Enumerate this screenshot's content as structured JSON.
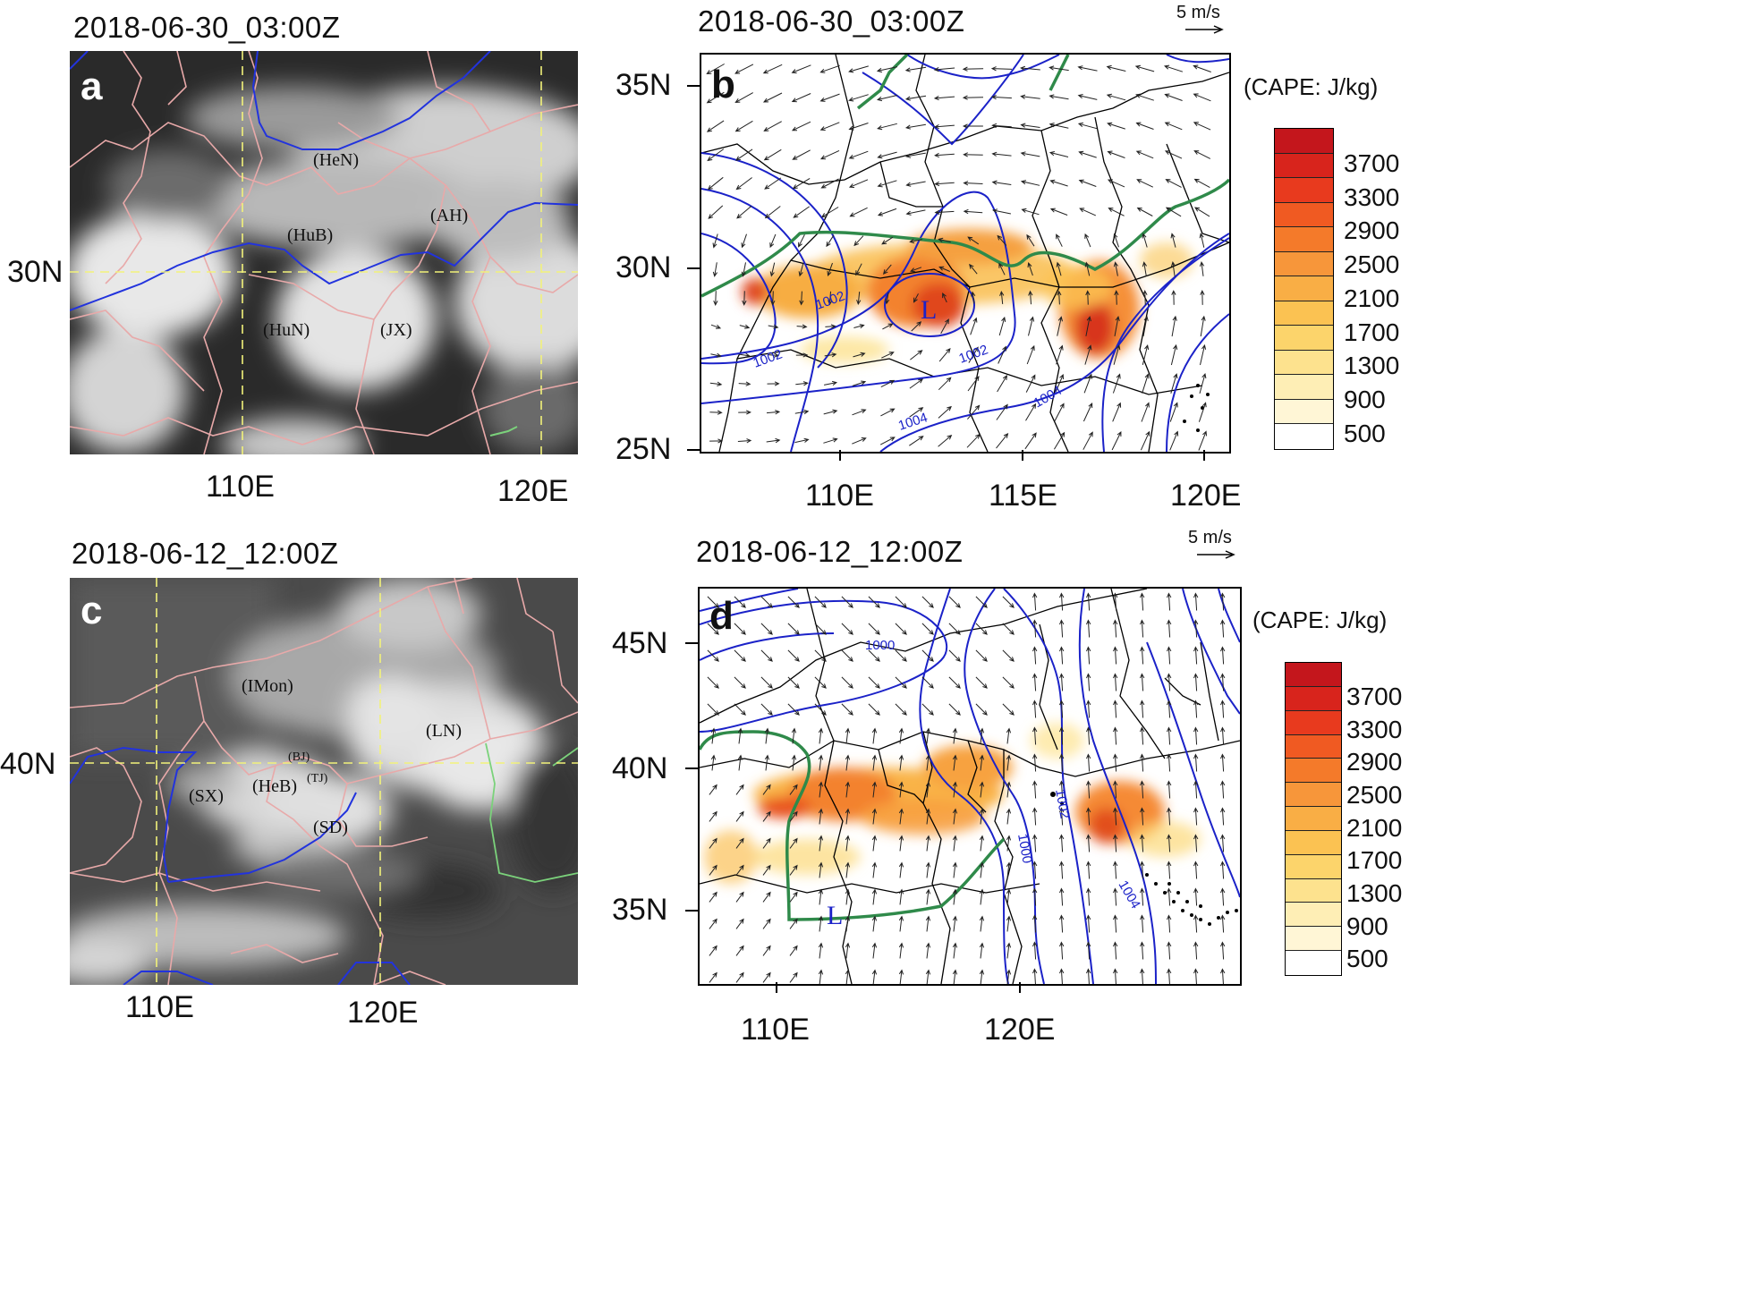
{
  "panels": {
    "a": {
      "letter": "a",
      "timestamp": "2018-06-30_03:00Z",
      "lat_labels": [
        "30N"
      ],
      "lon_labels": [
        "110E",
        "120E"
      ],
      "provinces": [
        "(HeN)",
        "(AH)",
        "(HuB)",
        "(HuN)",
        "(JX)"
      ]
    },
    "b": {
      "letter": "b",
      "timestamp": "2018-06-30_03:00Z",
      "wind_ref": "5 m/s",
      "lat_labels": [
        "35N",
        "30N",
        "25N"
      ],
      "lon_labels": [
        "110E",
        "115E",
        "120E"
      ],
      "low_marker": "L",
      "isobar_labels": [
        "1002",
        "1002",
        "1002",
        "1004",
        "1004"
      ]
    },
    "c": {
      "letter": "c",
      "timestamp": "2018-06-12_12:00Z",
      "lat_labels": [
        "40N"
      ],
      "lon_labels": [
        "110E",
        "120E"
      ],
      "provinces": [
        "(IMon)",
        "(LN)",
        "(BJ)",
        "(TJ)",
        "(SX)",
        "(HeB)",
        "(SD)"
      ]
    },
    "d": {
      "letter": "d",
      "timestamp": "2018-06-12_12:00Z",
      "wind_ref": "5 m/s",
      "lat_labels": [
        "45N",
        "40N",
        "35N"
      ],
      "lon_labels": [
        "110E",
        "120E"
      ],
      "low_marker": "L",
      "isobar_labels": [
        "1000",
        "1002",
        "1000",
        "1004"
      ]
    }
  },
  "colorbar": {
    "title": "(CAPE: J/kg)",
    "tick_labels": [
      "3700",
      "3300",
      "2900",
      "2500",
      "2100",
      "1700",
      "1300",
      "900",
      "500"
    ],
    "colors": [
      "#c4161c",
      "#d8241c",
      "#e83a1e",
      "#f05a22",
      "#f47a2a",
      "#f7963a",
      "#f9ae45",
      "#fbc252",
      "#fcd46b",
      "#fde28e",
      "#feeeb5",
      "#fff6d6",
      "#ffffff"
    ]
  },
  "colors": {
    "isobar": "#1b22c8",
    "boundary_green": "#2f8a4a",
    "province_pink": "#e8a9a9",
    "graticule_yellow": "#f2f27a",
    "coast_blue": "#1b22c8"
  }
}
